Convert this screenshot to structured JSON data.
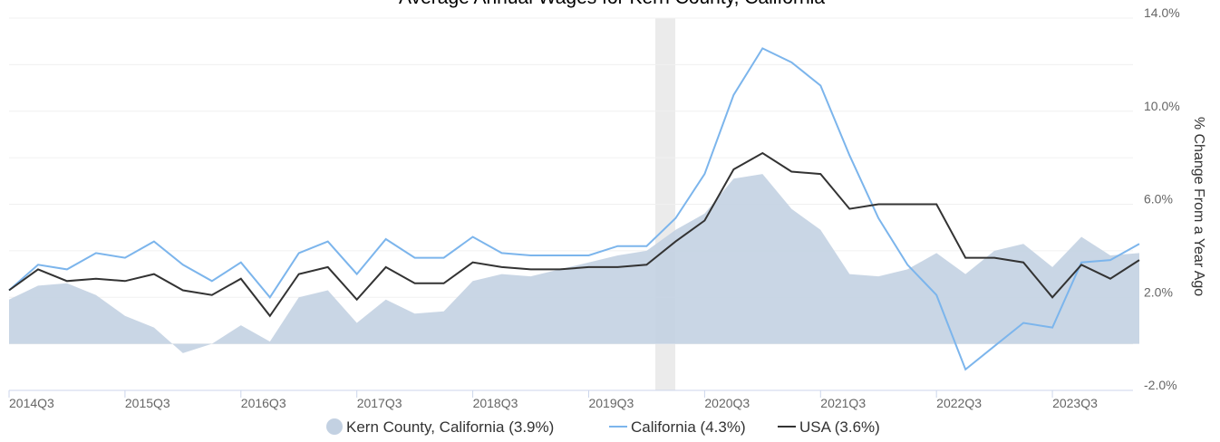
{
  "chart_data": {
    "type": "line",
    "title": "Average Annual Wages for Kern County, California",
    "y_axis_label": "% Change From a Year Ago",
    "categories": [
      "2014Q3",
      null,
      null,
      null,
      "2015Q3",
      null,
      null,
      null,
      "2016Q3",
      null,
      null,
      null,
      "2017Q3",
      null,
      null,
      null,
      "2018Q3",
      null,
      null,
      null,
      "2019Q3",
      null,
      null,
      null,
      "2020Q3",
      null,
      null,
      null,
      "2021Q3",
      null,
      null,
      null,
      "2022Q3",
      null,
      null,
      null,
      "2023Q3",
      null,
      null,
      null
    ],
    "series": [
      {
        "name": "Kern County, California (3.9%)",
        "kind": "area",
        "color": "#c3d1e2",
        "values": [
          1.9,
          2.5,
          2.6,
          2.1,
          1.2,
          0.7,
          -0.4,
          0.0,
          0.8,
          0.1,
          2.0,
          2.3,
          0.9,
          1.9,
          1.3,
          1.4,
          2.7,
          3.0,
          2.9,
          3.2,
          3.5,
          3.8,
          4.0,
          4.9,
          5.6,
          7.1,
          7.3,
          5.8,
          4.9,
          3.0,
          2.9,
          3.2,
          3.9,
          3.0,
          4.0,
          4.3,
          3.3,
          4.6,
          3.8,
          3.9
        ]
      },
      {
        "name": "California (4.3%)",
        "kind": "line",
        "color": "#7cb5ec",
        "values": [
          2.3,
          3.4,
          3.2,
          3.9,
          3.7,
          4.4,
          3.4,
          2.7,
          3.5,
          2.0,
          3.9,
          4.4,
          3.0,
          4.5,
          3.7,
          3.7,
          4.6,
          3.9,
          3.8,
          3.8,
          3.8,
          4.2,
          4.2,
          5.4,
          7.3,
          10.7,
          12.7,
          12.1,
          11.1,
          8.1,
          5.4,
          3.4,
          2.1,
          -1.1,
          -0.1,
          0.9,
          0.7,
          3.5,
          3.6,
          4.3
        ]
      },
      {
        "name": "USA (3.6%)",
        "kind": "line",
        "color": "#333333",
        "values": [
          2.3,
          3.2,
          2.7,
          2.8,
          2.7,
          3.0,
          2.3,
          2.1,
          2.8,
          1.2,
          3.0,
          3.3,
          1.9,
          3.3,
          2.6,
          2.6,
          3.5,
          3.3,
          3.2,
          3.2,
          3.3,
          3.3,
          3.4,
          4.4,
          5.3,
          7.5,
          8.2,
          7.4,
          7.3,
          5.8,
          6.0,
          6.0,
          6.0,
          3.7,
          3.7,
          3.5,
          2.0,
          3.4,
          2.8,
          3.6
        ]
      }
    ],
    "ylim": [
      -2,
      14
    ],
    "yticks": [
      {
        "value": 14,
        "label": "14.0%"
      },
      {
        "value": 10,
        "label": "10.0%"
      },
      {
        "value": 6,
        "label": "6.0%"
      },
      {
        "value": 2,
        "label": "2.0%"
      },
      {
        "value": -2,
        "label": "-2.0%"
      }
    ],
    "yticks_minor": [
      12,
      8,
      4,
      0
    ],
    "grid": true,
    "legend": "bottom"
  }
}
